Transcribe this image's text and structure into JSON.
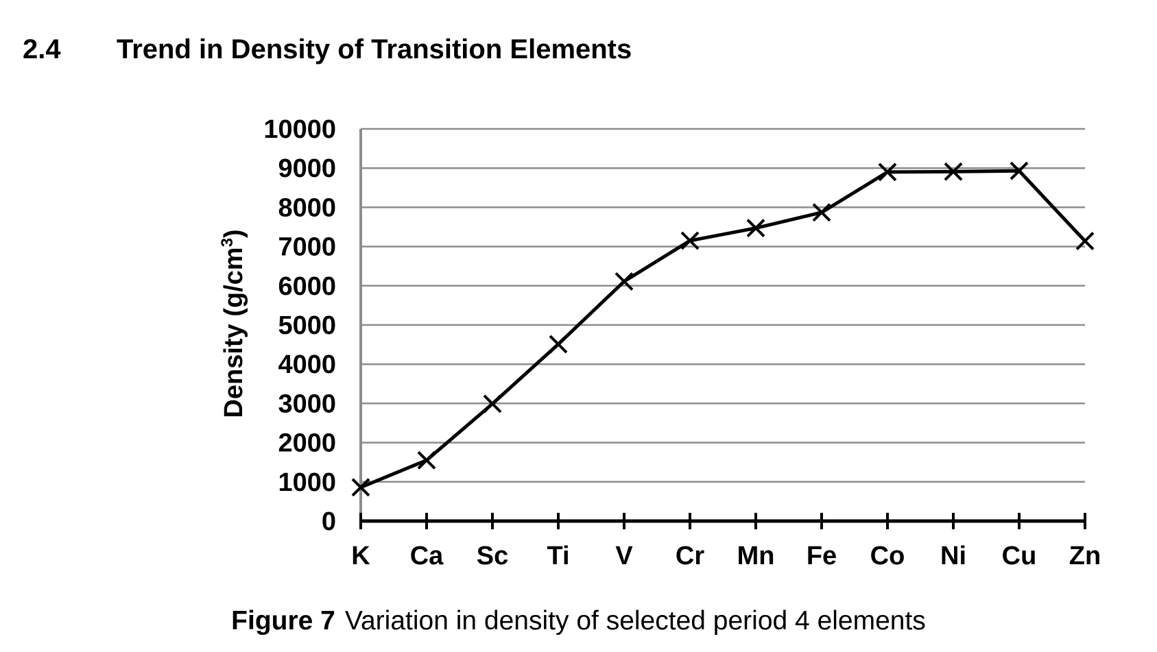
{
  "header": {
    "section_number": "2.4",
    "section_title": "Trend in Density of Transition Elements"
  },
  "caption": {
    "label": "Figure 7",
    "text": "Variation in density of selected period 4 elements"
  },
  "chart_data": {
    "type": "line",
    "categories": [
      "K",
      "Ca",
      "Sc",
      "Ti",
      "V",
      "Cr",
      "Mn",
      "Fe",
      "Co",
      "Ni",
      "Cu",
      "Zn"
    ],
    "series": [
      {
        "values": [
          860,
          1550,
          2990,
          4510,
          6110,
          7150,
          7470,
          7870,
          8900,
          8910,
          8930,
          7140
        ]
      }
    ],
    "ylabel": "Density (g/cm",
    "ylabel_superscript": "3",
    "ylabel_suffix": ")",
    "ylim": [
      0,
      10000
    ],
    "yticks": [
      0,
      1000,
      2000,
      3000,
      4000,
      5000,
      6000,
      7000,
      8000,
      9000,
      10000
    ],
    "marker": "cross",
    "grid": true,
    "colors": {
      "line": "#000000",
      "grid": "#8c8c8c",
      "axis": "#000000"
    }
  }
}
